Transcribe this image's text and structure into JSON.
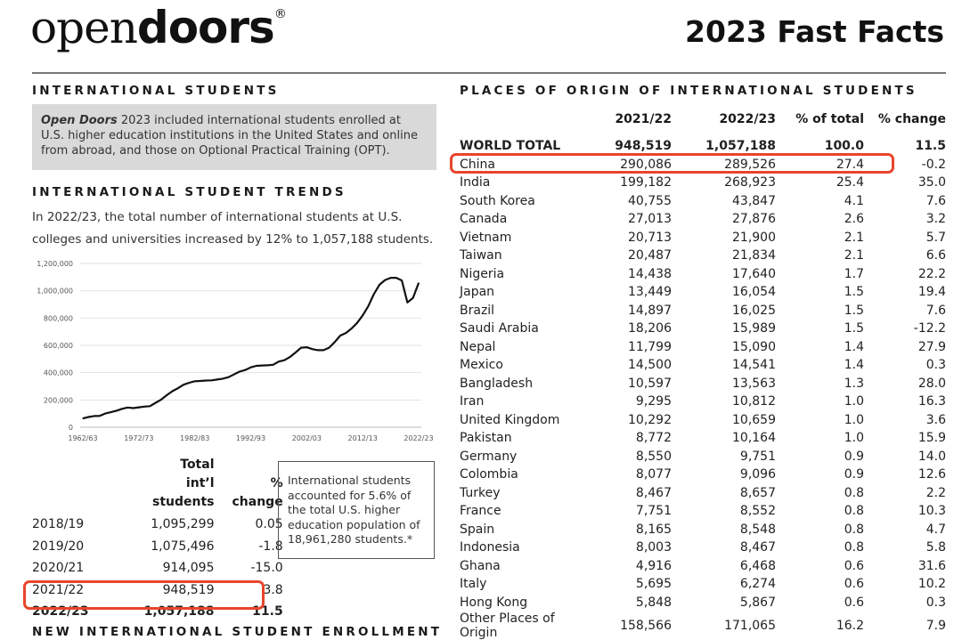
{
  "header": {
    "logo_light": "open",
    "logo_bold": "doors",
    "logo_mark": "®",
    "title": "2023 Fast Facts"
  },
  "left": {
    "section_title": "INTERNATIONAL STUDENTS",
    "note_italic": "Open Doors",
    "note_text": " 2023 included international students enrolled at U.S. higher education institutions in the United States and online from abroad, and those on Optional Practical Training (OPT).",
    "trends_title": "INTERNATIONAL STUDENT TRENDS",
    "trends_text": "In 2022/23, the total number of international students at U.S. colleges and universities increased by 12% to 1,057,188 students.",
    "table_headers": [
      "",
      "Total int’l students",
      "% change"
    ],
    "rows": [
      [
        "2018/19",
        "1,095,299",
        "0.05"
      ],
      [
        "2019/20",
        "1,075,496",
        "-1.8"
      ],
      [
        "2020/21",
        "914,095",
        "-15.0"
      ],
      [
        "2021/22",
        "948,519",
        "3.8"
      ],
      [
        "2022/23",
        "1,057,188",
        "11.5"
      ]
    ],
    "box_text": "International students accounted for 5.6% of the total U.S. higher education population of 18,961,280 students.*",
    "next_section_title": "NEW INTERNATIONAL STUDENT ENROLLMENT"
  },
  "right": {
    "section_title": "PLACES OF ORIGIN OF INTERNATIONAL STUDENTS",
    "headers": [
      "",
      "2021/22",
      "2022/23",
      "% of total",
      "% change"
    ],
    "rows": [
      [
        "WORLD TOTAL",
        "948,519",
        "1,057,188",
        "100.0",
        "11.5"
      ],
      [
        "China",
        "290,086",
        "289,526",
        "27.4",
        "-0.2"
      ],
      [
        "India",
        "199,182",
        "268,923",
        "25.4",
        "35.0"
      ],
      [
        "South Korea",
        "40,755",
        "43,847",
        "4.1",
        "7.6"
      ],
      [
        "Canada",
        "27,013",
        "27,876",
        "2.6",
        "3.2"
      ],
      [
        "Vietnam",
        "20,713",
        "21,900",
        "2.1",
        "5.7"
      ],
      [
        "Taiwan",
        "20,487",
        "21,834",
        "2.1",
        "6.6"
      ],
      [
        "Nigeria",
        "14,438",
        "17,640",
        "1.7",
        "22.2"
      ],
      [
        "Japan",
        "13,449",
        "16,054",
        "1.5",
        "19.4"
      ],
      [
        "Brazil",
        "14,897",
        "16,025",
        "1.5",
        "7.6"
      ],
      [
        "Saudi Arabia",
        "18,206",
        "15,989",
        "1.5",
        "-12.2"
      ],
      [
        "Nepal",
        "11,799",
        "15,090",
        "1.4",
        "27.9"
      ],
      [
        "Mexico",
        "14,500",
        "14,541",
        "1.4",
        "0.3"
      ],
      [
        "Bangladesh",
        "10,597",
        "13,563",
        "1.3",
        "28.0"
      ],
      [
        "Iran",
        "9,295",
        "10,812",
        "1.0",
        "16.3"
      ],
      [
        "United Kingdom",
        "10,292",
        "10,659",
        "1.0",
        "3.6"
      ],
      [
        "Pakistan",
        "8,772",
        "10,164",
        "1.0",
        "15.9"
      ],
      [
        "Germany",
        "8,550",
        "9,751",
        "0.9",
        "14.0"
      ],
      [
        "Colombia",
        "8,077",
        "9,096",
        "0.9",
        "12.6"
      ],
      [
        "Turkey",
        "8,467",
        "8,657",
        "0.8",
        "2.2"
      ],
      [
        "France",
        "7,751",
        "8,552",
        "0.8",
        "10.3"
      ],
      [
        "Spain",
        "8,165",
        "8,548",
        "0.8",
        "4.7"
      ],
      [
        "Indonesia",
        "8,003",
        "8,467",
        "0.8",
        "5.8"
      ],
      [
        "Ghana",
        "4,916",
        "6,468",
        "0.6",
        "31.6"
      ],
      [
        "Italy",
        "5,695",
        "6,274",
        "0.6",
        "10.2"
      ],
      [
        "Hong Kong",
        "5,848",
        "5,867",
        "0.6",
        "0.3"
      ],
      [
        "Other Places of Origin",
        "158,566",
        "171,065",
        "16.2",
        "7.9"
      ]
    ]
  },
  "colors": {
    "highlight": "#e8452c",
    "note_bg": "#d9d9d9"
  },
  "chart_data": {
    "type": "line",
    "title": "",
    "xlabel": "",
    "ylabel": "",
    "start_year": 1962,
    "x_tick_labels": [
      "1962/63",
      "1972/73",
      "1982/83",
      "1992/93",
      "2002/03",
      "2012/13",
      "2022/23"
    ],
    "y_tick_labels": [
      "0",
      "200,000",
      "400,000",
      "600,000",
      "800,000",
      "1,000,000",
      "1,200,000"
    ],
    "ylim": [
      0,
      1200000
    ],
    "grid": true,
    "values": [
      64705,
      74814,
      82045,
      82709,
      100262,
      110315,
      121362,
      134959,
      144708,
      140126,
      146097,
      151066,
      154580,
      179344,
      203068,
      235509,
      263938,
      286343,
      311882,
      326299,
      336985,
      338894,
      342113,
      343777,
      349609,
      356187,
      366354,
      386851,
      407529,
      419585,
      438618,
      449749,
      452635,
      453787,
      457984,
      481280,
      490933,
      514723,
      547867,
      582996,
      586323,
      572509,
      565039,
      564766,
      582984,
      623805,
      671616,
      690923,
      723277,
      764495,
      819644,
      886052,
      974926,
      1043839,
      1078822,
      1094792,
      1095299,
      1075496,
      914095,
      948519,
      1057188
    ]
  }
}
